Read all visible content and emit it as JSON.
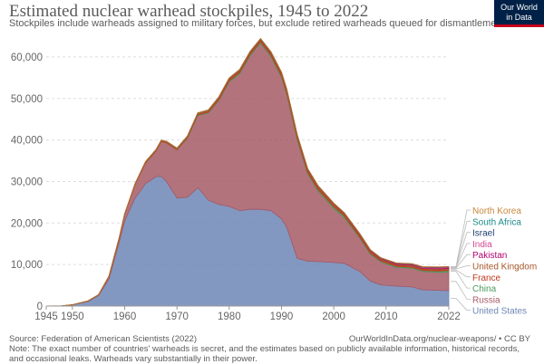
{
  "header": {
    "title": "Estimated nuclear warhead stockpiles, 1945 to 2022",
    "subtitle": "Stockpiles include warheads assigned to military forces, but exclude retired warheads queued for dismantlement."
  },
  "logo": {
    "line1": "Our World",
    "line2": "in Data",
    "bg_color": "#002147",
    "bar_color": "#c4001a"
  },
  "footer": {
    "source": "Source: Federation of American Scientists (2022)",
    "url": "OurWorldInData.org/nuclear-weapons/ • CC BY",
    "note": "Note: The exact number of countries' warheads is secret, and the estimates based on publicly available information, historical records, and occasional leaks. Warheads vary substantially in their power."
  },
  "chart_data": {
    "type": "area",
    "stacked": true,
    "title": "Estimated nuclear warhead stockpiles, 1945 to 2022",
    "xlabel": "",
    "ylabel": "",
    "xlim": [
      1945,
      2022
    ],
    "ylim": [
      0,
      65000
    ],
    "x_ticks": [
      1945,
      1950,
      1960,
      1970,
      1980,
      1990,
      2000,
      2010,
      2022
    ],
    "x_tick_labels": [
      "1945",
      "1950",
      "1960",
      "1970",
      "1980",
      "1990",
      "2000",
      "2010",
      "2022"
    ],
    "y_ticks": [
      0,
      10000,
      20000,
      30000,
      40000,
      50000,
      60000
    ],
    "y_tick_labels": [
      "0",
      "10,000",
      "20,000",
      "30,000",
      "40,000",
      "50,000",
      "60,000"
    ],
    "grid": "horizontal dashed",
    "legend": "right, labels at series end",
    "x": [
      1945,
      1948,
      1950,
      1953,
      1955,
      1957,
      1959,
      1960,
      1962,
      1964,
      1966,
      1967,
      1968,
      1970,
      1972,
      1974,
      1976,
      1978,
      1980,
      1982,
      1984,
      1986,
      1988,
      1990,
      1991,
      1993,
      1995,
      1997,
      2000,
      2002,
      2005,
      2007,
      2009,
      2012,
      2015,
      2017,
      2020,
      2022
    ],
    "series": [
      {
        "name": "United States",
        "color": "#6d86b6",
        "values": [
          2,
          50,
          300,
          1100,
          2500,
          6500,
          15500,
          20500,
          26000,
          29500,
          31200,
          31200,
          30000,
          26000,
          26200,
          28500,
          25500,
          24500,
          24000,
          23000,
          23300,
          23300,
          23000,
          21000,
          19000,
          11500,
          10800,
          10700,
          10500,
          10300,
          8300,
          6000,
          5100,
          4800,
          4600,
          3900,
          3800,
          3700
        ]
      },
      {
        "name": "Russia",
        "color": "#a55a66",
        "values": [
          0,
          0,
          5,
          120,
          200,
          650,
          1050,
          1630,
          3300,
          5000,
          6100,
          8400,
          9300,
          11600,
          14200,
          17400,
          21000,
          25000,
          30000,
          33000,
          37000,
          40000,
          37000,
          34000,
          32000,
          28500,
          21000,
          17000,
          13000,
          11000,
          8000,
          6500,
          5500,
          4500,
          4500,
          4400,
          4300,
          4480
        ]
      },
      {
        "name": "China",
        "color": "#4c9a5c",
        "values": [
          0,
          0,
          0,
          0,
          0,
          0,
          0,
          0,
          0,
          0,
          20,
          25,
          35,
          75,
          130,
          150,
          180,
          200,
          250,
          280,
          330,
          360,
          390,
          400,
          400,
          400,
          400,
          400,
          400,
          400,
          250,
          250,
          250,
          250,
          260,
          270,
          350,
          350
        ]
      },
      {
        "name": "France",
        "color": "#c13a1f",
        "values": [
          0,
          0,
          0,
          0,
          0,
          0,
          0,
          0,
          0,
          4,
          32,
          36,
          40,
          50,
          50,
          100,
          150,
          200,
          250,
          270,
          280,
          355,
          420,
          505,
          500,
          470,
          500,
          500,
          450,
          350,
          350,
          350,
          300,
          300,
          300,
          300,
          290,
          290
        ]
      },
      {
        "name": "United Kingdom",
        "color": "#a65628",
        "values": [
          0,
          0,
          0,
          1,
          10,
          20,
          50,
          30,
          150,
          280,
          310,
          270,
          280,
          280,
          300,
          325,
          350,
          350,
          350,
          350,
          350,
          300,
          300,
          300,
          300,
          300,
          300,
          280,
          280,
          280,
          280,
          225,
          225,
          225,
          215,
          215,
          225,
          225
        ]
      },
      {
        "name": "Pakistan",
        "color": "#b2006f",
        "values": [
          0,
          0,
          0,
          0,
          0,
          0,
          0,
          0,
          0,
          0,
          0,
          0,
          0,
          0,
          0,
          0,
          0,
          0,
          0,
          0,
          0,
          0,
          0,
          0,
          0,
          0,
          0,
          0,
          20,
          30,
          50,
          60,
          70,
          90,
          110,
          130,
          160,
          165
        ]
      },
      {
        "name": "India",
        "color": "#d4488f",
        "values": [
          0,
          0,
          0,
          0,
          0,
          0,
          0,
          0,
          0,
          0,
          0,
          0,
          0,
          0,
          0,
          0,
          0,
          0,
          0,
          0,
          0,
          0,
          0,
          0,
          0,
          0,
          0,
          0,
          20,
          30,
          50,
          60,
          70,
          90,
          100,
          120,
          150,
          160
        ]
      },
      {
        "name": "Israel",
        "color": "#1c3d6e",
        "values": [
          0,
          0,
          0,
          0,
          0,
          0,
          0,
          0,
          0,
          0,
          0,
          2,
          4,
          20,
          30,
          40,
          50,
          60,
          70,
          70,
          80,
          80,
          80,
          80,
          80,
          80,
          80,
          80,
          80,
          80,
          80,
          80,
          80,
          80,
          80,
          90,
          90,
          90
        ]
      },
      {
        "name": "South Africa",
        "color": "#1a8a8a",
        "values": [
          0,
          0,
          0,
          0,
          0,
          0,
          0,
          0,
          0,
          0,
          0,
          0,
          0,
          0,
          0,
          0,
          0,
          0,
          0,
          1,
          2,
          3,
          6,
          6,
          0,
          0,
          0,
          0,
          0,
          0,
          0,
          0,
          0,
          0,
          0,
          0,
          0,
          0
        ]
      },
      {
        "name": "North Korea",
        "color": "#c9873b",
        "values": [
          0,
          0,
          0,
          0,
          0,
          0,
          0,
          0,
          0,
          0,
          0,
          0,
          0,
          0,
          0,
          0,
          0,
          0,
          0,
          0,
          0,
          0,
          0,
          0,
          0,
          0,
          0,
          0,
          0,
          0,
          0,
          0,
          2,
          5,
          10,
          15,
          30,
          20
        ]
      }
    ],
    "legend_order": [
      "North Korea",
      "South Africa",
      "Israel",
      "India",
      "Pakistan",
      "United Kingdom",
      "France",
      "China",
      "Russia",
      "United States"
    ]
  }
}
